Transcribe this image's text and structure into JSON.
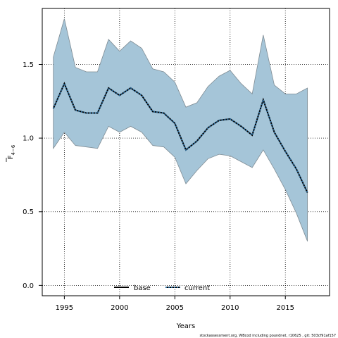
{
  "chart_data": {
    "type": "area",
    "xlabel": "Years",
    "ylabel": "F",
    "ylabel_subscript": "4−6",
    "x": [
      1994,
      1995,
      1996,
      1997,
      1998,
      1999,
      2000,
      2001,
      2002,
      2003,
      2004,
      2005,
      2006,
      2007,
      2008,
      2009,
      2010,
      2011,
      2012,
      2013,
      2014,
      2015,
      2016,
      2017
    ],
    "series": [
      {
        "name": "current",
        "values": [
          1.2,
          1.37,
          1.19,
          1.17,
          1.17,
          1.34,
          1.29,
          1.34,
          1.29,
          1.18,
          1.17,
          1.1,
          0.92,
          0.98,
          1.07,
          1.12,
          1.13,
          1.08,
          1.02,
          1.26,
          1.04,
          0.91,
          0.79,
          0.63
        ],
        "lower": [
          0.93,
          1.04,
          0.95,
          0.94,
          0.93,
          1.08,
          1.04,
          1.08,
          1.04,
          0.95,
          0.94,
          0.87,
          0.69,
          0.78,
          0.86,
          0.89,
          0.88,
          0.84,
          0.8,
          0.92,
          0.79,
          0.65,
          0.49,
          0.3
        ],
        "upper": [
          1.55,
          1.81,
          1.48,
          1.45,
          1.45,
          1.67,
          1.59,
          1.66,
          1.61,
          1.47,
          1.45,
          1.38,
          1.21,
          1.24,
          1.35,
          1.42,
          1.46,
          1.37,
          1.3,
          1.7,
          1.36,
          1.3,
          1.3,
          1.34
        ]
      }
    ],
    "xlim": [
      1993,
      2019
    ],
    "ylim": [
      -0.07,
      1.88
    ],
    "xticks": [
      1995,
      2000,
      2005,
      2010,
      2015
    ],
    "xtick_labels": [
      "1995",
      "2000",
      "2005",
      "2010",
      "2015"
    ],
    "yticks": [
      0.0,
      0.5,
      1.0,
      1.5
    ],
    "ytick_labels": [
      "0.0",
      "0.5",
      "1.0",
      "1.5"
    ],
    "grid": true,
    "legend": {
      "placement": "bottom-center",
      "entries": [
        {
          "label": "base",
          "style": "solid",
          "color": "#000000"
        },
        {
          "label": "current",
          "style": "dotted",
          "color": "#1b4f72"
        }
      ]
    },
    "colors": {
      "band_fill": "#a5c5d8",
      "band_edge": "#7f8c94",
      "current_line": "#000000",
      "current_dots": "#2e6e9e"
    },
    "footer": "stockassessment.org, WBcod including poundnet, r10625 , git: 503cf91af157"
  }
}
